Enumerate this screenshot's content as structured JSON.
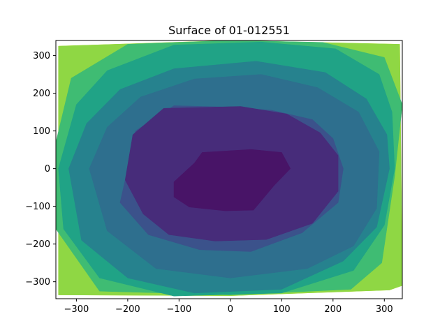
{
  "chart_data": {
    "type": "contour",
    "title": "Surface of 01-012551",
    "xlabel": "",
    "ylabel": "",
    "xlim": [
      -340,
      335
    ],
    "ylim": [
      -345,
      340
    ],
    "xticks": [
      -300,
      -200,
      -100,
      0,
      100,
      200,
      300
    ],
    "yticks": [
      -300,
      -200,
      -100,
      0,
      100,
      200,
      300
    ],
    "xtick_labels": [
      "−300",
      "−200",
      "−100",
      "0",
      "100",
      "200",
      "300"
    ],
    "ytick_labels": [
      "−300",
      "−200",
      "−100",
      "0",
      "100",
      "200",
      "300"
    ],
    "grid": false,
    "colormap": "viridis",
    "levels": [
      {
        "color": "#fde725",
        "ring": [
          [
            -335,
            325
          ],
          [
            0,
            340
          ],
          [
            330,
            330
          ],
          [
            335,
            -310
          ],
          [
            310,
            -322
          ],
          [
            0,
            -337
          ],
          [
            -335,
            -335
          ]
        ]
      },
      {
        "color": "#8fd744",
        "ring": [
          [
            -335,
            325
          ],
          [
            0,
            340
          ],
          [
            330,
            330
          ],
          [
            335,
            -310
          ],
          [
            310,
            -322
          ],
          [
            0,
            -337
          ],
          [
            -335,
            -335
          ]
        ]
      },
      {
        "color": "#3fbc73",
        "ring": [
          [
            -340,
            70
          ],
          [
            -310,
            240
          ],
          [
            -200,
            330
          ],
          [
            0,
            340
          ],
          [
            180,
            335
          ],
          [
            300,
            295
          ],
          [
            335,
            170
          ],
          [
            320,
            -20
          ],
          [
            295,
            -250
          ],
          [
            235,
            -320
          ],
          [
            0,
            -335
          ],
          [
            -255,
            -325
          ],
          [
            -340,
            -160
          ]
        ]
      },
      {
        "color": "#20a386",
        "ring": [
          [
            -335,
            0
          ],
          [
            -300,
            170
          ],
          [
            -240,
            260
          ],
          [
            -110,
            328
          ],
          [
            60,
            336
          ],
          [
            205,
            318
          ],
          [
            290,
            250
          ],
          [
            315,
            150
          ],
          [
            320,
            0
          ],
          [
            300,
            -150
          ],
          [
            240,
            -270
          ],
          [
            100,
            -330
          ],
          [
            -110,
            -338
          ],
          [
            -255,
            -290
          ],
          [
            -325,
            -160
          ]
        ]
      },
      {
        "color": "#26828e",
        "ring": [
          [
            -315,
            0
          ],
          [
            -280,
            120
          ],
          [
            -215,
            210
          ],
          [
            -110,
            265
          ],
          [
            50,
            285
          ],
          [
            185,
            255
          ],
          [
            265,
            185
          ],
          [
            305,
            90
          ],
          [
            310,
            0
          ],
          [
            285,
            -155
          ],
          [
            220,
            -245
          ],
          [
            100,
            -320
          ],
          [
            -70,
            -330
          ],
          [
            -200,
            -290
          ],
          [
            -290,
            -190
          ]
        ]
      },
      {
        "color": "#2e6f8e",
        "ring": [
          [
            -275,
            0
          ],
          [
            -240,
            110
          ],
          [
            -175,
            190
          ],
          [
            -70,
            238
          ],
          [
            60,
            250
          ],
          [
            170,
            215
          ],
          [
            250,
            150
          ],
          [
            290,
            45
          ],
          [
            285,
            -105
          ],
          [
            240,
            -205
          ],
          [
            150,
            -265
          ],
          [
            0,
            -290
          ],
          [
            -145,
            -265
          ],
          [
            -240,
            -165
          ]
        ]
      },
      {
        "color": "#3b528b",
        "ring": [
          [
            -200,
            0
          ],
          [
            -185,
            100
          ],
          [
            -110,
            167
          ],
          [
            -20,
            164
          ],
          [
            80,
            155
          ],
          [
            160,
            130
          ],
          [
            200,
            80
          ],
          [
            220,
            0
          ],
          [
            210,
            -90
          ],
          [
            140,
            -170
          ],
          [
            40,
            -220
          ],
          [
            -60,
            -215
          ],
          [
            -160,
            -175
          ],
          [
            -215,
            -90
          ]
        ]
      },
      {
        "color": "#472c7a",
        "ring": [
          [
            -190,
            90
          ],
          [
            -130,
            160
          ],
          [
            20,
            165
          ],
          [
            110,
            145
          ],
          [
            175,
            95
          ],
          [
            210,
            35
          ],
          [
            210,
            -60
          ],
          [
            160,
            -145
          ],
          [
            70,
            -188
          ],
          [
            -30,
            -192
          ],
          [
            -120,
            -175
          ],
          [
            -170,
            -120
          ],
          [
            -205,
            -30
          ]
        ]
      },
      {
        "color": "#481467",
        "ring": [
          [
            -55,
            43
          ],
          [
            40,
            51
          ],
          [
            100,
            43
          ],
          [
            117,
            0
          ],
          [
            85,
            -45
          ],
          [
            45,
            -110
          ],
          [
            -10,
            -112
          ],
          [
            -80,
            -102
          ],
          [
            -110,
            -75
          ],
          [
            -110,
            -35
          ],
          [
            -70,
            15
          ]
        ]
      }
    ]
  }
}
